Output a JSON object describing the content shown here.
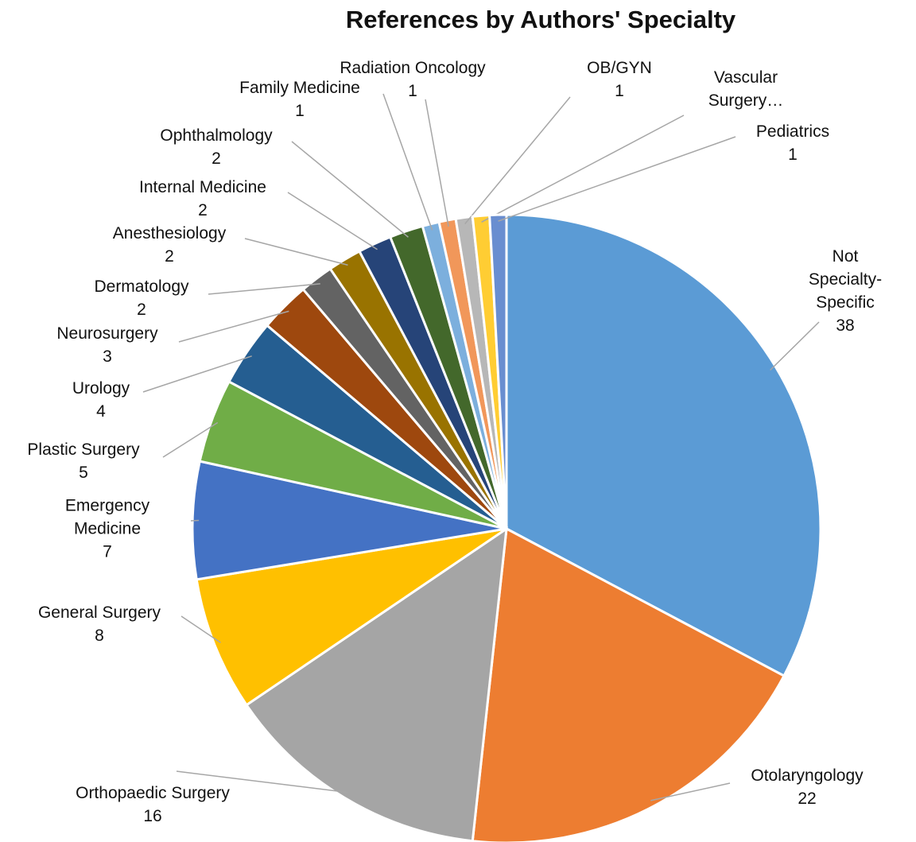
{
  "chart_data": {
    "type": "pie",
    "title": "References by Authors' Specialty",
    "categories": [
      "Not Specialty-\nSpecific",
      "Otolaryngology",
      "Orthopaedic Surgery",
      "General Surgery",
      "Emergency\nMedicine",
      "Plastic Surgery",
      "Urology",
      "Neurosurgery",
      "Dermatology",
      "Anesthesiology",
      "Internal Medicine",
      "Ophthalmology",
      "Family Medicine",
      "Radiation Oncology",
      "OB/GYN",
      "Vascular\nSurgery…",
      "Pediatrics"
    ],
    "values": [
      38,
      22,
      16,
      8,
      7,
      5,
      4,
      3,
      2,
      2,
      2,
      2,
      1,
      1,
      1,
      1,
      1
    ],
    "colors": [
      "#5b9bd5",
      "#ed7d31",
      "#a5a5a5",
      "#ffc000",
      "#4472c4",
      "#70ad47",
      "#255e91",
      "#9e480e",
      "#636363",
      "#997300",
      "#264478",
      "#43682b",
      "#7cafdd",
      "#f1975a",
      "#b7b7b7",
      "#ffcd33",
      "#698ed0"
    ]
  }
}
